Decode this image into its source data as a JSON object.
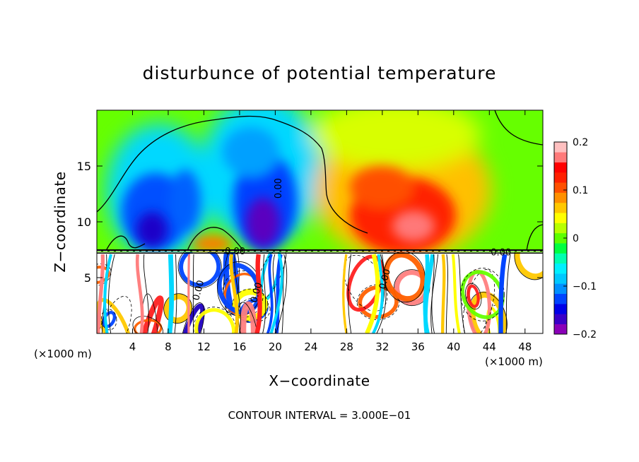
{
  "chart_data": {
    "type": "heatmap",
    "title": "disturbunce of potential temperature",
    "xlabel": "X−coordinate",
    "ylabel": "Z−coordinate",
    "x_unit_left": "(×1000 m)",
    "x_unit_right": "(×1000 m)",
    "xlim": [
      0,
      50
    ],
    "ylim": [
      0,
      20
    ],
    "xticks": [
      4,
      8,
      12,
      16,
      20,
      24,
      28,
      32,
      36,
      40,
      44,
      48
    ],
    "yticks": [
      5,
      10,
      15
    ],
    "colorbar": {
      "range": [
        -0.2,
        0.2
      ],
      "ticks": [
        0.2,
        0.1,
        0,
        -0.1,
        -0.2
      ],
      "tick_labels": [
        "0.2",
        "0.1",
        "0",
        "−0.1",
        "−0.2"
      ],
      "colors": [
        "#8a00b8",
        "#3a00c8",
        "#0000e8",
        "#0044ff",
        "#0090ff",
        "#00c8ff",
        "#00f0ff",
        "#00ffb0",
        "#00ff40",
        "#5cff00",
        "#b8ff00",
        "#ffff00",
        "#ffc800",
        "#ff9000",
        "#ff5000",
        "#ff2000",
        "#ff0000",
        "#ff7a7a",
        "#ffc0c0"
      ]
    },
    "inversion_level": 7.3,
    "contour_labels": [
      {
        "text": "0.00",
        "x": 20.7,
        "y": 13.0
      },
      {
        "text": "0.00",
        "x": 15.5,
        "y": 7.1
      },
      {
        "text": "0.00",
        "x": 45.3,
        "y": 7.0
      },
      {
        "text": "0.00",
        "x": 11.7,
        "y": 3.8
      },
      {
        "text": "0.00",
        "x": 18.2,
        "y": 3.6
      },
      {
        "text": "0.00",
        "x": 32.6,
        "y": 4.8
      }
    ],
    "anomalies": [
      {
        "x": 6.5,
        "z": 11.5,
        "value": -0.17
      },
      {
        "x": 10.0,
        "z": 12.5,
        "value": -0.12
      },
      {
        "x": 18.7,
        "z": 11.5,
        "value": -0.2
      },
      {
        "x": 17.5,
        "z": 16.5,
        "value": -0.06
      },
      {
        "x": 12.5,
        "z": 8.5,
        "value": 0.1
      },
      {
        "x": 35.0,
        "z": 11.5,
        "value": 0.18
      },
      {
        "x": 32.0,
        "z": 14.0,
        "value": 0.1
      },
      {
        "x": 46.5,
        "z": 9.5,
        "value": 0.04
      }
    ],
    "footer": "CONTOUR INTERVAL = 3.000E−01"
  }
}
